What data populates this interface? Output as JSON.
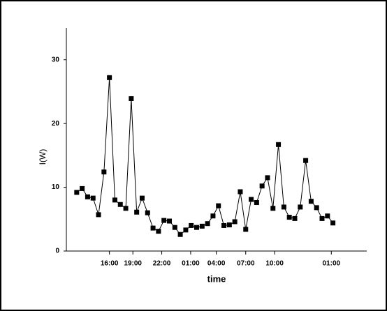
{
  "chart_data": {
    "type": "line",
    "y_label": "I(W)",
    "x_label": "time",
    "x": [
      1,
      2,
      3,
      4,
      5,
      6,
      7,
      8,
      9,
      10,
      11,
      12,
      13,
      14,
      15,
      16,
      17,
      18,
      19,
      20,
      21,
      22,
      23,
      24,
      25,
      26,
      27,
      28,
      29,
      30,
      31,
      32,
      33,
      34,
      35,
      36,
      37,
      38,
      39,
      40,
      41,
      42,
      43,
      44,
      45,
      46,
      47,
      48
    ],
    "values": [
      9.2,
      9.8,
      8.5,
      8.3,
      5.7,
      12.4,
      27.2,
      8.0,
      7.3,
      6.7,
      23.9,
      6.1,
      8.3,
      6.0,
      3.6,
      3.1,
      4.8,
      4.7,
      3.7,
      2.6,
      3.3,
      4.0,
      3.7,
      3.9,
      4.3,
      5.5,
      7.1,
      4.0,
      4.1,
      4.6,
      9.3,
      3.4,
      8.1,
      7.6,
      10.2,
      11.5,
      6.7,
      16.7,
      6.9,
      5.3,
      5.1,
      6.9,
      14.2,
      7.8,
      6.8,
      5.1,
      5.5,
      4.4
    ],
    "color": "#000000",
    "xlim": [
      -0.9,
      54.2
    ],
    "ylim": [
      0,
      35
    ],
    "xticks": [
      {
        "value": 7.0,
        "label": "16:00"
      },
      {
        "value": 11.3,
        "label": "19:00"
      },
      {
        "value": 16.6,
        "label": "22:00"
      },
      {
        "value": 21.9,
        "label": "01:00"
      },
      {
        "value": 26.6,
        "label": "04:00"
      },
      {
        "value": 32.0,
        "label": "07:00"
      },
      {
        "value": 37.3,
        "label": "10:00"
      },
      {
        "value": 47.7,
        "label": "01:00"
      }
    ],
    "yticks": [
      0,
      10,
      20,
      30
    ]
  }
}
